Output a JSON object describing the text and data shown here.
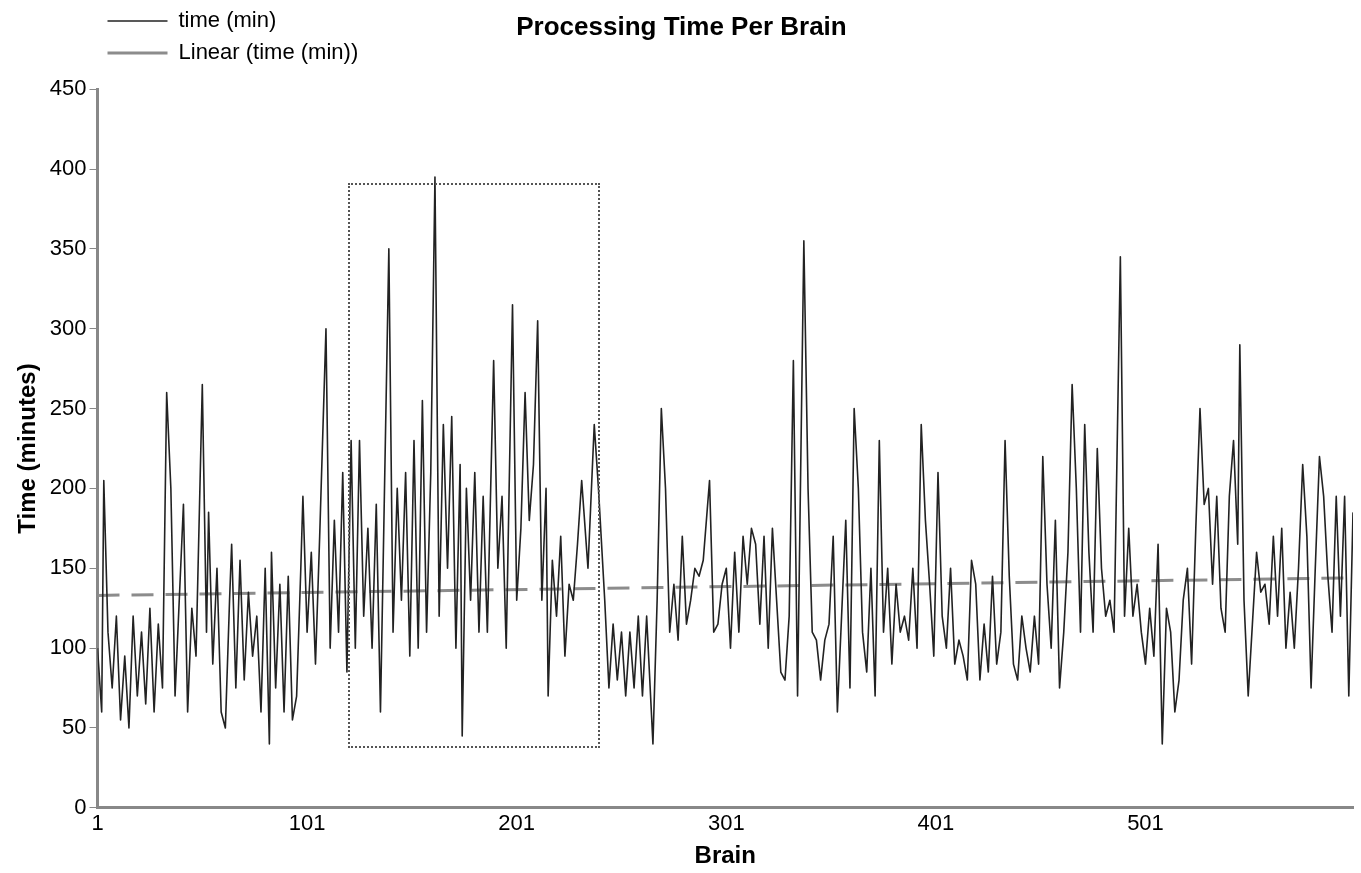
{
  "chart_data": {
    "type": "line",
    "title": "Processing Time Per Brain",
    "xlabel": "Brain",
    "ylabel": "Time (minutes)",
    "xlim": [
      1,
      600
    ],
    "xticks": [
      1,
      101,
      201,
      301,
      401,
      501
    ],
    "ylim": [
      0,
      450
    ],
    "yticks": [
      0,
      50,
      100,
      150,
      200,
      250,
      300,
      350,
      400,
      450
    ],
    "grid": false,
    "legend": "top left",
    "marker": "none",
    "series": [
      {
        "name": "time (min)",
        "color": "#222222",
        "line_style": "solid",
        "x": [
          1,
          3,
          4,
          6,
          8,
          10,
          12,
          14,
          16,
          18,
          20,
          22,
          24,
          26,
          28,
          30,
          32,
          34,
          36,
          38,
          40,
          42,
          44,
          46,
          48,
          51,
          53,
          54,
          56,
          58,
          60,
          62,
          64,
          65,
          67,
          69,
          71,
          73,
          75,
          77,
          79,
          81,
          83,
          84,
          86,
          88,
          90,
          92,
          94,
          96,
          98,
          99,
          101,
          103,
          105,
          107,
          110,
          112,
          114,
          116,
          118,
          120,
          122,
          124,
          126,
          128,
          130,
          132,
          134,
          136,
          140,
          142,
          144,
          146,
          148,
          150,
          152,
          154,
          156,
          158,
          160,
          162,
          164,
          166,
          168,
          170,
          172,
          174,
          175,
          177,
          179,
          181,
          183,
          185,
          187,
          190,
          192,
          194,
          196,
          199,
          201,
          203,
          205,
          207,
          209,
          211,
          213,
          215,
          216,
          218,
          220,
          222,
          224,
          226,
          228,
          230,
          232,
          235,
          238,
          240,
          243,
          245,
          247,
          249,
          251,
          253,
          255,
          257,
          259,
          261,
          263,
          266,
          268,
          270,
          272,
          274,
          276,
          278,
          280,
          282,
          284,
          286,
          288,
          290,
          293,
          295,
          297,
          299,
          301,
          303,
          305,
          307,
          309,
          311,
          313,
          315,
          317,
          319,
          321,
          323,
          325,
          327,
          329,
          331,
          333,
          335,
          338,
          340,
          342,
          344,
          346,
          348,
          350,
          352,
          354,
          356,
          358,
          360,
          362,
          364,
          366,
          368,
          370,
          372,
          374,
          376,
          378,
          380,
          382,
          384,
          386,
          388,
          390,
          392,
          394,
          396,
          398,
          400,
          402,
          404,
          406,
          408,
          410,
          412,
          414,
          416,
          418,
          420,
          422,
          424,
          426,
          428,
          430,
          432,
          434,
          436,
          438,
          440,
          442,
          444,
          446,
          448,
          450,
          452,
          454,
          456,
          458,
          460,
          462,
          464,
          466,
          468,
          470,
          472,
          474,
          476,
          478,
          480,
          482,
          484,
          486,
          489,
          491,
          493,
          495,
          497,
          499,
          501,
          503,
          505,
          507,
          509,
          511,
          513,
          515,
          517,
          519,
          521,
          523,
          525,
          527,
          529,
          531,
          533,
          535,
          537,
          539,
          541,
          543,
          545,
          546,
          548,
          550,
          552,
          554,
          556,
          558,
          560,
          562,
          564,
          566,
          568,
          570,
          572,
          574,
          576,
          578,
          580,
          582,
          584,
          586,
          588,
          590,
          592,
          594,
          596,
          598,
          600
        ],
        "values": [
          100,
          60,
          205,
          110,
          75,
          120,
          55,
          95,
          50,
          120,
          70,
          110,
          65,
          125,
          60,
          115,
          75,
          260,
          200,
          70,
          130,
          190,
          60,
          125,
          95,
          265,
          110,
          185,
          90,
          150,
          60,
          50,
          130,
          165,
          75,
          155,
          80,
          135,
          95,
          120,
          60,
          150,
          40,
          160,
          75,
          140,
          60,
          145,
          55,
          70,
          150,
          195,
          110,
          160,
          90,
          170,
          300,
          100,
          180,
          110,
          210,
          85,
          230,
          100,
          230,
          120,
          175,
          100,
          190,
          60,
          350,
          110,
          200,
          130,
          210,
          95,
          230,
          100,
          255,
          110,
          210,
          395,
          120,
          240,
          150,
          245,
          100,
          215,
          45,
          200,
          130,
          210,
          110,
          195,
          110,
          280,
          150,
          195,
          100,
          315,
          130,
          175,
          260,
          180,
          215,
          305,
          130,
          200,
          70,
          155,
          120,
          170,
          95,
          140,
          130,
          165,
          205,
          150,
          240,
          200,
          130,
          75,
          115,
          80,
          110,
          70,
          110,
          75,
          120,
          70,
          120,
          40,
          130,
          250,
          200,
          110,
          140,
          105,
          170,
          115,
          130,
          150,
          145,
          155,
          205,
          110,
          115,
          140,
          150,
          100,
          160,
          110,
          170,
          140,
          175,
          165,
          115,
          170,
          100,
          175,
          130,
          85,
          80,
          120,
          280,
          70,
          355,
          200,
          110,
          105,
          80,
          105,
          115,
          170,
          60,
          120,
          180,
          75,
          250,
          200,
          110,
          85,
          150,
          70,
          230,
          110,
          150,
          90,
          140,
          110,
          120,
          105,
          150,
          100,
          240,
          180,
          140,
          95,
          210,
          120,
          100,
          150,
          90,
          105,
          95,
          80,
          155,
          140,
          80,
          115,
          85,
          145,
          90,
          110,
          230,
          145,
          90,
          80,
          120,
          100,
          85,
          120,
          90,
          220,
          140,
          100,
          180,
          75,
          110,
          160,
          265,
          200,
          110,
          240,
          160,
          110,
          225,
          150,
          120,
          130,
          110,
          345,
          120,
          175,
          120,
          140,
          110,
          90,
          125,
          95,
          165,
          40,
          125,
          110,
          60,
          80,
          130,
          150,
          90,
          175,
          250,
          190,
          200,
          140,
          195,
          125,
          110,
          195,
          230,
          165,
          290,
          130,
          70,
          115,
          160,
          135,
          140,
          115,
          170,
          120,
          175,
          100,
          135,
          100,
          150,
          215,
          170,
          75,
          150,
          220,
          195,
          145,
          110,
          195,
          120,
          195,
          70,
          185
        ]
      },
      {
        "name": "Linear (time (min))",
        "type": "line",
        "color": "#8c8c8c",
        "line_style": "dashed",
        "x": [
          1,
          600
        ],
        "values": [
          133,
          144
        ]
      }
    ]
  }
}
